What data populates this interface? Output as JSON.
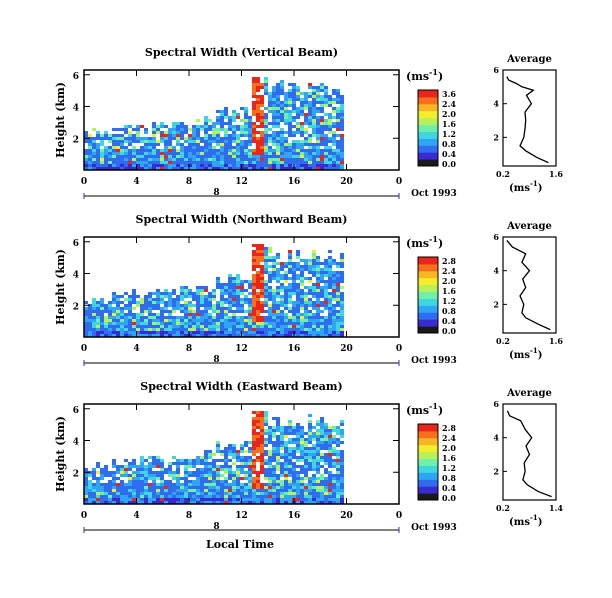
{
  "figure": {
    "xlabel": "Local Time",
    "date_label": "Oct 1993",
    "day_label": "8",
    "height_label": "Height (km)",
    "unit_label": "(ms",
    "unit_sup": "-1",
    "unit_close": ")",
    "avg_title": "Average"
  },
  "colorbar": {
    "colors": [
      "#1a1a1a",
      "#3a2bd0",
      "#2f6cf0",
      "#2fa6f5",
      "#3fd6e0",
      "#6ef0a8",
      "#b6f05a",
      "#f2ee2c",
      "#f7b624",
      "#f4701c",
      "#e8261c"
    ]
  },
  "chart_data": [
    {
      "type": "heatmap",
      "title": "Spectral Width (Vertical Beam)",
      "x_ticks": [
        "0",
        "4",
        "8",
        "12",
        "16",
        "20",
        "0"
      ],
      "y_ticks": [
        "6",
        "4",
        "2"
      ],
      "colorbar_ticks": [
        "3.6",
        "2.4",
        "2.0",
        "1.6",
        "1.2",
        "0.8",
        "0.4",
        "0.0"
      ],
      "profile": {
        "type": "line",
        "x_ticks": [
          "0.2",
          "1.6"
        ],
        "y_ticks": [
          "6",
          "4",
          "2"
        ],
        "xlim": [
          0.2,
          1.6
        ],
        "ylim": [
          0.3,
          6.0
        ],
        "height": [
          0.5,
          0.8,
          1.2,
          1.5,
          2.0,
          2.5,
          3.0,
          3.5,
          4.0,
          4.5,
          4.8,
          5.0,
          5.2,
          5.4,
          5.6
        ],
        "width": [
          1.4,
          1.1,
          0.8,
          0.65,
          0.75,
          0.78,
          0.8,
          0.78,
          0.95,
          0.82,
          1.0,
          0.7,
          0.55,
          0.35,
          0.3
        ]
      }
    },
    {
      "type": "heatmap",
      "title": "Spectral Width (Northward Beam)",
      "x_ticks": [
        "0",
        "4",
        "8",
        "12",
        "16",
        "20",
        "0"
      ],
      "y_ticks": [
        "6",
        "4",
        "2"
      ],
      "colorbar_ticks": [
        "2.8",
        "2.4",
        "2.0",
        "1.6",
        "1.2",
        "0.8",
        "0.4",
        "0.0"
      ],
      "profile": {
        "type": "line",
        "x_ticks": [
          "0.2",
          "1.6"
        ],
        "y_ticks": [
          "6",
          "4",
          "2"
        ],
        "xlim": [
          0.2,
          1.6
        ],
        "ylim": [
          0.3,
          6.0
        ],
        "height": [
          0.5,
          0.8,
          1.2,
          1.5,
          2.0,
          2.5,
          3.0,
          3.5,
          4.0,
          4.5,
          5.0,
          5.4,
          5.8
        ],
        "width": [
          1.45,
          1.15,
          0.8,
          0.7,
          0.75,
          0.65,
          0.8,
          0.72,
          0.9,
          0.7,
          0.8,
          0.45,
          0.3
        ]
      }
    },
    {
      "type": "heatmap",
      "title": "Spectral Width (Eastward Beam)",
      "x_ticks": [
        "0",
        "4",
        "8",
        "12",
        "16",
        "20",
        "0"
      ],
      "y_ticks": [
        "6",
        "4",
        "2"
      ],
      "colorbar_ticks": [
        "2.8",
        "2.4",
        "2.0",
        "1.6",
        "1.2",
        "0.8",
        "0.4",
        "0.0"
      ],
      "profile": {
        "type": "line",
        "x_ticks": [
          "0.2",
          "1.4"
        ],
        "y_ticks": [
          "6",
          "4",
          "2"
        ],
        "xlim": [
          0.2,
          1.4
        ],
        "ylim": [
          0.3,
          6.0
        ],
        "height": [
          0.5,
          0.8,
          1.2,
          1.5,
          2.0,
          2.5,
          3.0,
          3.5,
          4.0,
          4.5,
          5.0,
          5.3,
          5.6
        ],
        "width": [
          1.3,
          1.0,
          0.75,
          0.65,
          0.7,
          0.68,
          0.8,
          0.72,
          0.85,
          0.7,
          0.6,
          0.35,
          0.3
        ]
      }
    }
  ]
}
